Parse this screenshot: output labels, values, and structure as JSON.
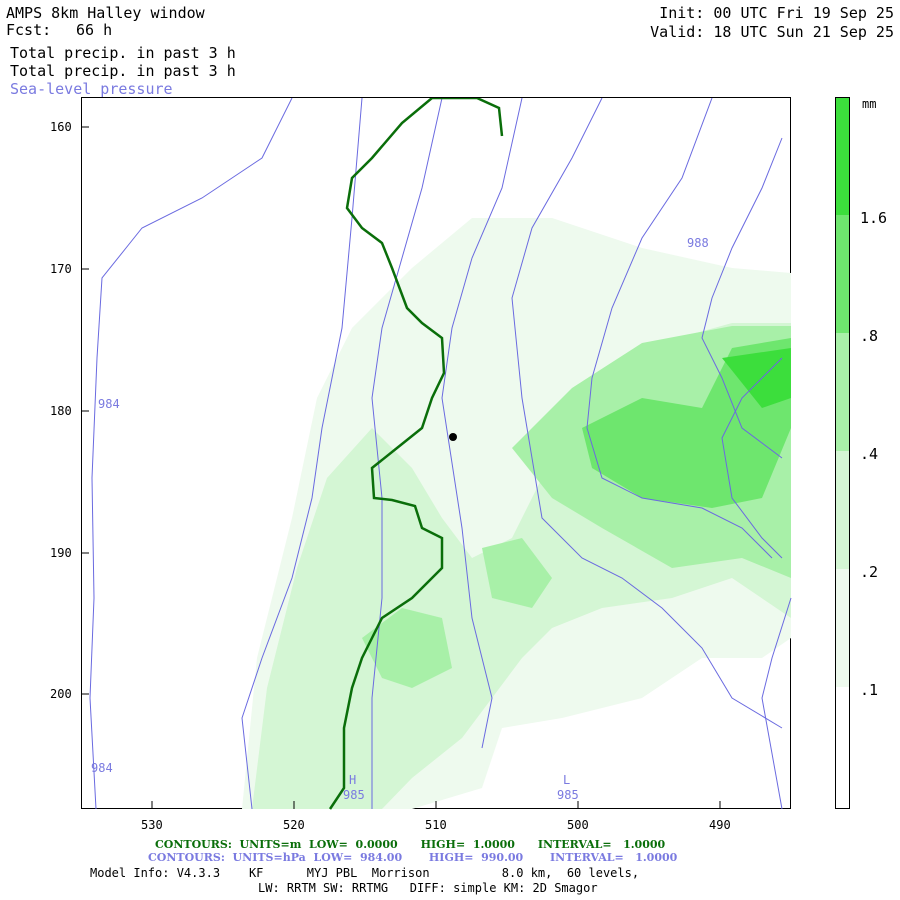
{
  "header": {
    "model_title": "AMPS 8km Halley window",
    "fcst_label": "Fcst:",
    "fcst_value": "66 h",
    "field1": "Total precip. in past 3 h",
    "field2": "Total precip. in past 3 h",
    "field3": "Sea-level pressure",
    "init": "Init: 00 UTC Fri 19 Sep 25",
    "valid": "Valid: 18 UTC Sun 21 Sep 25"
  },
  "axes": {
    "y_ticks": [
      "160",
      "170",
      "180",
      "190",
      "200"
    ],
    "x_ticks": [
      "530",
      "520",
      "510",
      "500",
      "490"
    ]
  },
  "colorbar": {
    "unit": "mm",
    "levels": [
      "1.6",
      ".8",
      ".4",
      ".2",
      ".1"
    ],
    "colors": [
      "#ffffff",
      "#eefaee",
      "#d4f6d4",
      "#a8f0a8",
      "#6ee66e",
      "#3cde3c"
    ]
  },
  "contour_labels": {
    "l988": "988",
    "l984a": "984",
    "l984b": "984",
    "high_mark": "H",
    "high_val": "985",
    "low_mark": "L",
    "low_val": "985"
  },
  "footer": {
    "contours1": "CONTOURS:  UNITS=m  LOW=  0.0000      HIGH=  1.0000      INTERVAL=   1.0000",
    "contours2": "CONTOURS:  UNITS=hPa  LOW=  984.00       HIGH=  990.00       INTERVAL=   1.0000",
    "model_info": "Model Info: V4.3.3    KF      MYJ PBL  Morrison          8.0 km,  60 levels,",
    "physics": "LW: RRTM SW: RRTMG   DIFF: simple KM: 2D Smagor"
  },
  "colors": {
    "terrain_contour": "#0a6e0a",
    "pressure_contour": "#6a6ae0",
    "label_blue": "#7a7ae0"
  }
}
